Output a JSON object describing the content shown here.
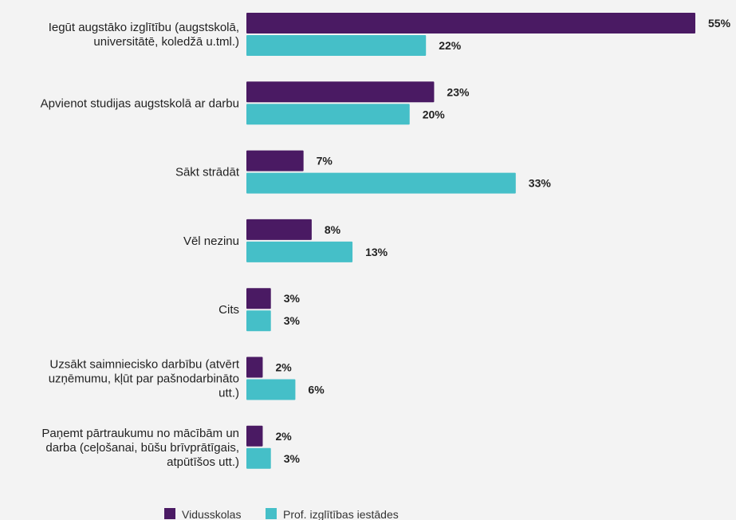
{
  "chart_data": {
    "type": "bar",
    "orientation": "horizontal",
    "categories": [
      [
        "Iegūt augstāko izglītību (augstskolā,",
        "universitātē, koledžā u.tml.)"
      ],
      [
        "Apvienot studijas augstskolā ar darbu"
      ],
      [
        "Sākt strādāt"
      ],
      [
        "Vēl nezinu"
      ],
      [
        "Cits"
      ],
      [
        "Uzsākt saimniecisko darbību (atvērt",
        "uzņēmumu, kļūt par pašnodarbināto",
        "utt.)"
      ],
      [
        "Paņemt pārtraukumu no mācībām un",
        "darba (ceļošanai, būšu brīvprātīgais,",
        "atpūtīšos utt.)"
      ]
    ],
    "series": [
      {
        "name": "Vidusskolas",
        "color": "#4a1a63",
        "values": [
          55,
          23,
          7,
          8,
          3,
          2,
          2
        ],
        "labels": [
          "55%",
          "23%",
          "7%",
          "8%",
          "3%",
          "2%",
          "2%"
        ]
      },
      {
        "name": "Prof. izglītības iestādes",
        "color": "#45bfc8",
        "values": [
          22,
          20,
          33,
          13,
          3,
          6,
          3
        ],
        "labels": [
          "22%",
          "20%",
          "33%",
          "13%",
          "3%",
          "6%",
          "3%"
        ]
      }
    ],
    "value_unit": "%",
    "xlim": [
      0,
      55
    ],
    "grid": false,
    "legend_position": "bottom-center"
  }
}
